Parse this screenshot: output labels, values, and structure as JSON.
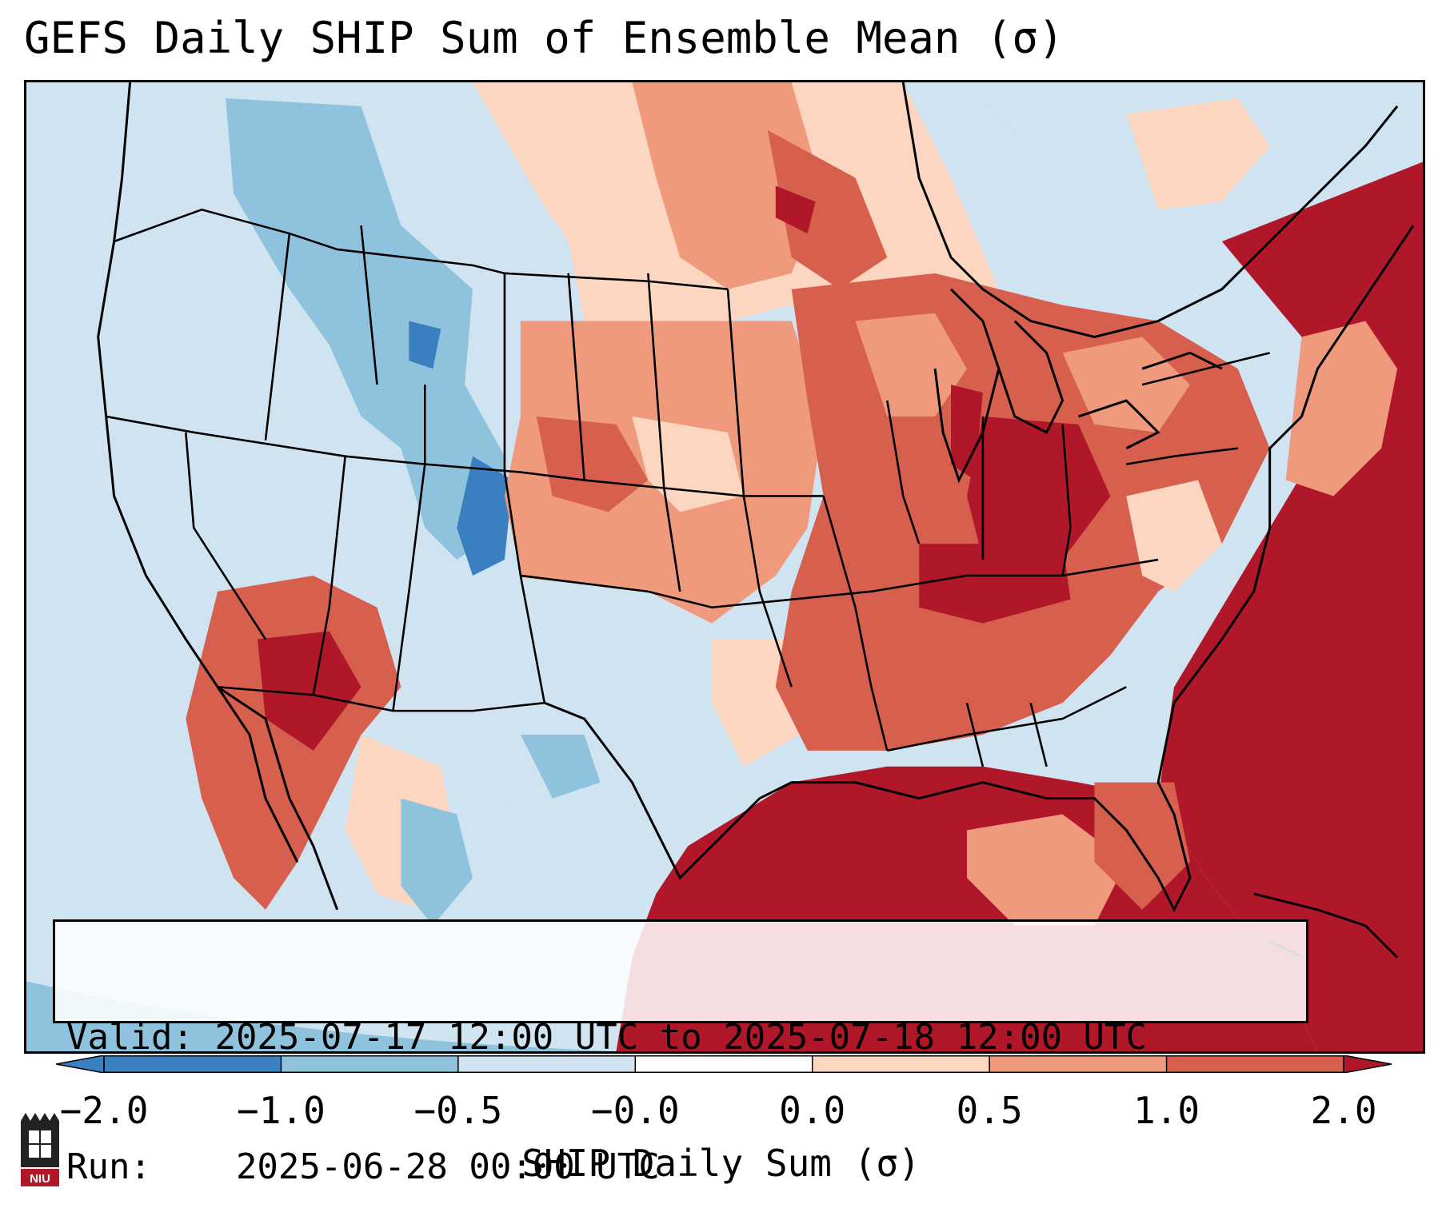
{
  "title": "GEFS Daily SHIP Sum of Ensemble Mean (σ)",
  "info": {
    "valid_label": "Valid:",
    "valid_value": "2025-07-17 12:00 UTC to 2025-07-18 12:00 UTC",
    "run_label": "Run:",
    "run_value": "2025-06-28 00:00 UTC"
  },
  "colorbar": {
    "label": "SHIP Daily Sum (σ)",
    "ticks": [
      "−2.0",
      "−1.0",
      "−0.5",
      "−0.0",
      "0.0",
      "0.5",
      "1.0",
      "2.0"
    ],
    "colors": [
      "#3a7fbf",
      "#8fc3dd",
      "#cfe3f0",
      "#ffffff",
      "#fcd6c1",
      "#ef9a7c",
      "#d65f4d",
      "#b0182a"
    ],
    "extend": "both"
  },
  "map": {
    "region": "Contiguous United States",
    "ocean_color": "#cfe3f0",
    "gulf_color": "#b0182a"
  },
  "logo": {
    "text": "NIU"
  }
}
